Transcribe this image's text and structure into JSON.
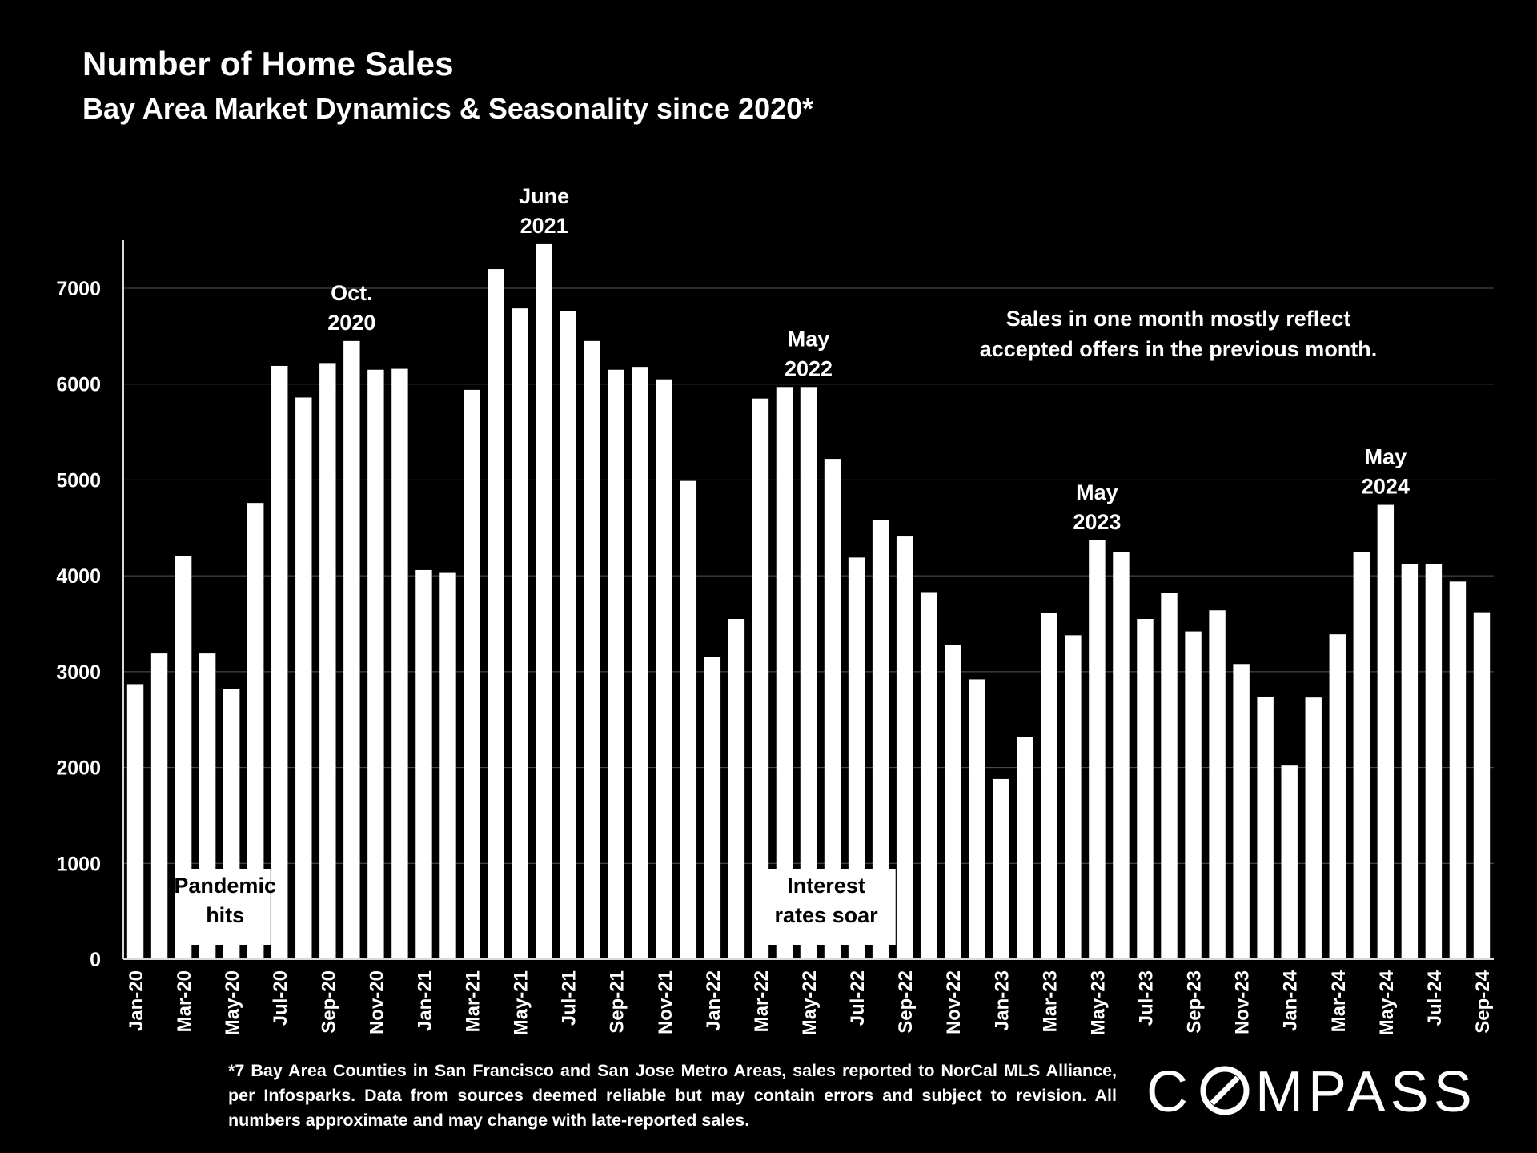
{
  "title": "Number of Home Sales",
  "subtitle": "Bay Area Market Dynamics & Seasonality since 2020*",
  "footnote": "*7 Bay Area Counties in San Francisco and San Jose Metro Areas, sales reported to NorCal MLS Alliance, per Infosparks.  Data from sources deemed reliable but may contain errors and subject to revision. All numbers approximate and may change with late-reported sales.",
  "logo": {
    "text": "COMPASS",
    "letters_before": "C",
    "letters_after": "MPASS"
  },
  "colors": {
    "background": "#000000",
    "bars": "#ffffff",
    "text": "#ffffff",
    "grid": "#555555"
  },
  "chart_data": {
    "type": "bar",
    "title": "Number of Home Sales",
    "subtitle": "Bay Area Market Dynamics & Seasonality since 2020*",
    "xlabel": "",
    "ylabel": "",
    "ylim": [
      0,
      7500
    ],
    "yticks": [
      0,
      1000,
      2000,
      3000,
      4000,
      5000,
      6000,
      7000
    ],
    "grid": true,
    "categories": [
      "Jan-20",
      "Feb-20",
      "Mar-20",
      "Apr-20",
      "May-20",
      "Jun-20",
      "Jul-20",
      "Aug-20",
      "Sep-20",
      "Oct-20",
      "Nov-20",
      "Dec-20",
      "Jan-21",
      "Feb-21",
      "Mar-21",
      "Apr-21",
      "May-21",
      "Jun-21",
      "Jul-21",
      "Aug-21",
      "Sep-21",
      "Oct-21",
      "Nov-21",
      "Dec-21",
      "Jan-22",
      "Feb-22",
      "Mar-22",
      "Apr-22",
      "May-22",
      "Jun-22",
      "Jul-22",
      "Aug-22",
      "Sep-22",
      "Oct-22",
      "Nov-22",
      "Dec-22",
      "Jan-23",
      "Feb-23",
      "Mar-23",
      "Apr-23",
      "May-23",
      "Jun-23",
      "Jul-23",
      "Aug-23",
      "Sep-23",
      "Oct-23",
      "Nov-23",
      "Dec-23",
      "Jan-24",
      "Feb-24",
      "Mar-24",
      "Apr-24",
      "May-24",
      "Jun-24",
      "Jul-24",
      "Aug-24",
      "Sep-24"
    ],
    "tick_labels": [
      "Jan-20",
      "Mar-20",
      "May-20",
      "Jul-20",
      "Sep-20",
      "Nov-20",
      "Jan-21",
      "Mar-21",
      "May-21",
      "Jul-21",
      "Sep-21",
      "Nov-21",
      "Jan-22",
      "Mar-22",
      "May-22",
      "Jul-22",
      "Sep-22",
      "Nov-22",
      "Jan-23",
      "Mar-23",
      "May-23",
      "Jul-23",
      "Sep-23",
      "Nov-23",
      "Jan-24",
      "Mar-24",
      "May-24",
      "Jul-24",
      "Sep-24"
    ],
    "values": [
      2870,
      3190,
      4210,
      3190,
      2820,
      4760,
      6190,
      5860,
      6220,
      6450,
      6150,
      6160,
      4060,
      4030,
      5940,
      7200,
      6790,
      7460,
      6760,
      6450,
      6150,
      6180,
      6050,
      4990,
      3150,
      3550,
      5850,
      5970,
      5970,
      5220,
      4190,
      4580,
      4410,
      3830,
      3280,
      2920,
      1880,
      2320,
      3610,
      3380,
      4370,
      4250,
      3550,
      3820,
      3420,
      3640,
      3080,
      2740,
      2020,
      2730,
      3390,
      4250,
      4740,
      4120,
      4120,
      3940,
      3620
    ],
    "annotations": [
      {
        "label": "Oct.\n2020",
        "index": 9
      },
      {
        "label": "June\n2021",
        "index": 17
      },
      {
        "label": "May\n2022",
        "index": 28
      },
      {
        "label": "May\n2023",
        "index": 40
      },
      {
        "label": "May\n2024",
        "index": 52
      }
    ],
    "callouts": [
      {
        "label": "Pandemic\nhits",
        "from_index": 2,
        "to_index": 5
      },
      {
        "label": "Interest\nrates soar",
        "from_index": 26,
        "to_index": 31
      }
    ],
    "note": "Sales in one month mostly reflect\naccepted offers in the previous month."
  }
}
